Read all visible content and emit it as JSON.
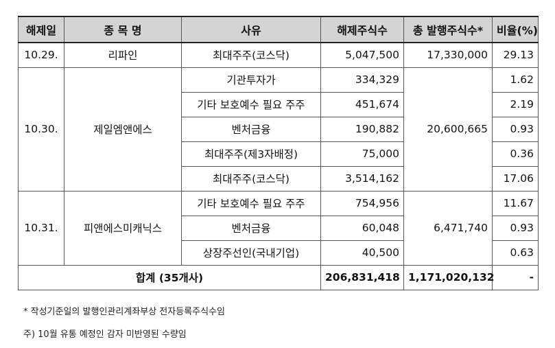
{
  "headers": {
    "date": "해제일",
    "name": "종 목 명",
    "reason": "사유",
    "released": "해제주식수",
    "total": "총 발행주식수*",
    "ratio": "비율(%)"
  },
  "groups": [
    {
      "date": "10.29.",
      "name": "리파인",
      "total": "17,330,000",
      "rows": [
        {
          "reason": "최대주주(코스닥)",
          "released": "5,047,500",
          "ratio": "29.13"
        }
      ]
    },
    {
      "date": "10.30.",
      "name": "제일엠앤에스",
      "total": "20,600,665",
      "rows": [
        {
          "reason": "기관투자가",
          "released": "334,329",
          "ratio": "1.62"
        },
        {
          "reason": "기타 보호예수 필요 주주",
          "released": "451,674",
          "ratio": "2.19"
        },
        {
          "reason": "벤처금융",
          "released": "190,882",
          "ratio": "0.93"
        },
        {
          "reason": "최대주주(제3자배정)",
          "released": "75,000",
          "ratio": "0.36"
        },
        {
          "reason": "최대주주(코스닥)",
          "released": "3,514,162",
          "ratio": "17.06"
        }
      ]
    },
    {
      "date": "10.31.",
      "name": "피앤에스미캐닉스",
      "total": "6,471,740",
      "rows": [
        {
          "reason": "기타 보호예수 필요 주주",
          "released": "754,956",
          "ratio": "11.67"
        },
        {
          "reason": "벤처금융",
          "released": "60,048",
          "ratio": "0.93"
        },
        {
          "reason": "상장주선인(국내기업)",
          "released": "40,500",
          "ratio": "0.63"
        }
      ]
    }
  ],
  "summary": {
    "label": "합계 (35개사)",
    "released": "206,831,418",
    "total": "1,171,020,132",
    "ratio": "-"
  },
  "notes": {
    "note1": "* 작성기준일의 발행인관리계좌부상 전자등록주식수임",
    "note2": "주) 10월 유통 예정인 감자 미반영된 수량임"
  }
}
